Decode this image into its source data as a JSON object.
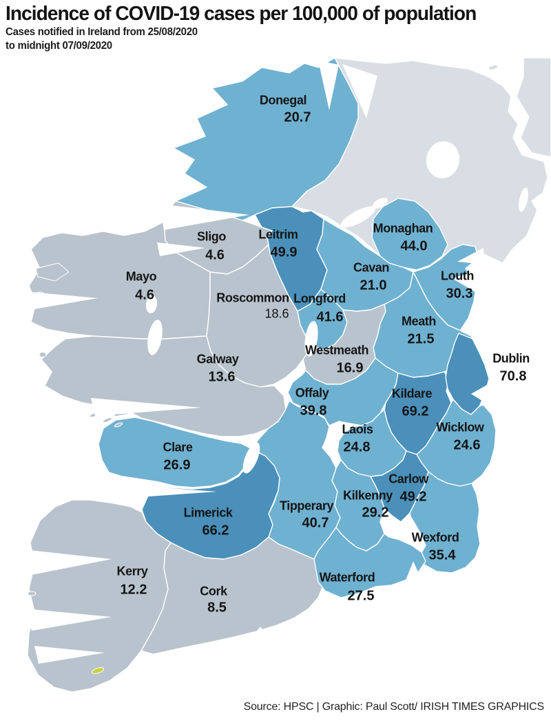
{
  "title": "Incidence of COVID-19 cases per 100,000 of population",
  "subtitle_line1": "Cases notified in Ireland from 25/08/2020",
  "subtitle_line2": "to midnight 07/09/2020",
  "source": "Source: HPSC  |  Graphic: Paul Scott/ IRISH TIMES GRAPHICS",
  "colors": {
    "band_low": "#b9c3cd",
    "band_mid": "#6fb1d1",
    "band_high": "#4a90ba",
    "northern_ireland": "#d9dee4",
    "sea": "#ffffff",
    "border": "#ffffff",
    "highlight_islet": "#c9d23a",
    "text": "#151515"
  },
  "counties": [
    {
      "name": "Donegal",
      "value": "20.7"
    },
    {
      "name": "Sligo",
      "value": "4.6"
    },
    {
      "name": "Leitrim",
      "value": "49.9"
    },
    {
      "name": "Monaghan",
      "value": "44.0"
    },
    {
      "name": "Cavan",
      "value": "21.0"
    },
    {
      "name": "Louth",
      "value": "30.3"
    },
    {
      "name": "Mayo",
      "value": "4.6"
    },
    {
      "name": "Roscommon",
      "value": "18.6"
    },
    {
      "name": "Longford",
      "value": "41.6"
    },
    {
      "name": "Meath",
      "value": "21.5"
    },
    {
      "name": "Westmeath",
      "value": "16.9"
    },
    {
      "name": "Dublin",
      "value": "70.8"
    },
    {
      "name": "Galway",
      "value": "13.6"
    },
    {
      "name": "Offaly",
      "value": "39.8"
    },
    {
      "name": "Kildare",
      "value": "69.2"
    },
    {
      "name": "Laois",
      "value": "24.8"
    },
    {
      "name": "Wicklow",
      "value": "24.6"
    },
    {
      "name": "Clare",
      "value": "26.9"
    },
    {
      "name": "Carlow",
      "value": "49.2"
    },
    {
      "name": "Kilkenny",
      "value": "29.2"
    },
    {
      "name": "Tipperary",
      "value": "40.7"
    },
    {
      "name": "Limerick",
      "value": "66.2"
    },
    {
      "name": "Wexford",
      "value": "35.4"
    },
    {
      "name": "Kerry",
      "value": "12.2"
    },
    {
      "name": "Cork",
      "value": "8.5"
    },
    {
      "name": "Waterford",
      "value": "27.5"
    }
  ],
  "chart_data": {
    "type": "heatmap",
    "subtype": "choropleth-map",
    "region": "Ireland (Republic of Ireland counties; Northern Ireland shown without data)",
    "unit": "cases per 100,000 of population",
    "title": "Incidence of COVID-19 cases per 100,000 of population",
    "categories": [
      "Donegal",
      "Sligo",
      "Leitrim",
      "Monaghan",
      "Cavan",
      "Louth",
      "Mayo",
      "Roscommon",
      "Longford",
      "Meath",
      "Westmeath",
      "Dublin",
      "Galway",
      "Offaly",
      "Kildare",
      "Laois",
      "Wicklow",
      "Clare",
      "Carlow",
      "Kilkenny",
      "Tipperary",
      "Limerick",
      "Wexford",
      "Kerry",
      "Cork",
      "Waterford"
    ],
    "values": [
      20.7,
      4.6,
      49.9,
      44.0,
      21.0,
      30.3,
      4.6,
      18.6,
      41.6,
      21.5,
      16.9,
      70.8,
      13.6,
      39.8,
      69.2,
      24.8,
      24.6,
      26.9,
      49.2,
      29.2,
      40.7,
      66.2,
      35.4,
      12.2,
      8.5,
      27.5
    ],
    "color_bands": [
      {
        "range": "< 20",
        "color": "#b9c3cd"
      },
      {
        "range": "20-45",
        "color": "#6fb1d1"
      },
      {
        "range": ">= 45",
        "color": "#4a90ba"
      },
      {
        "range": "no data (Northern Ireland)",
        "color": "#d9dee4"
      }
    ],
    "legend_position": "none"
  }
}
